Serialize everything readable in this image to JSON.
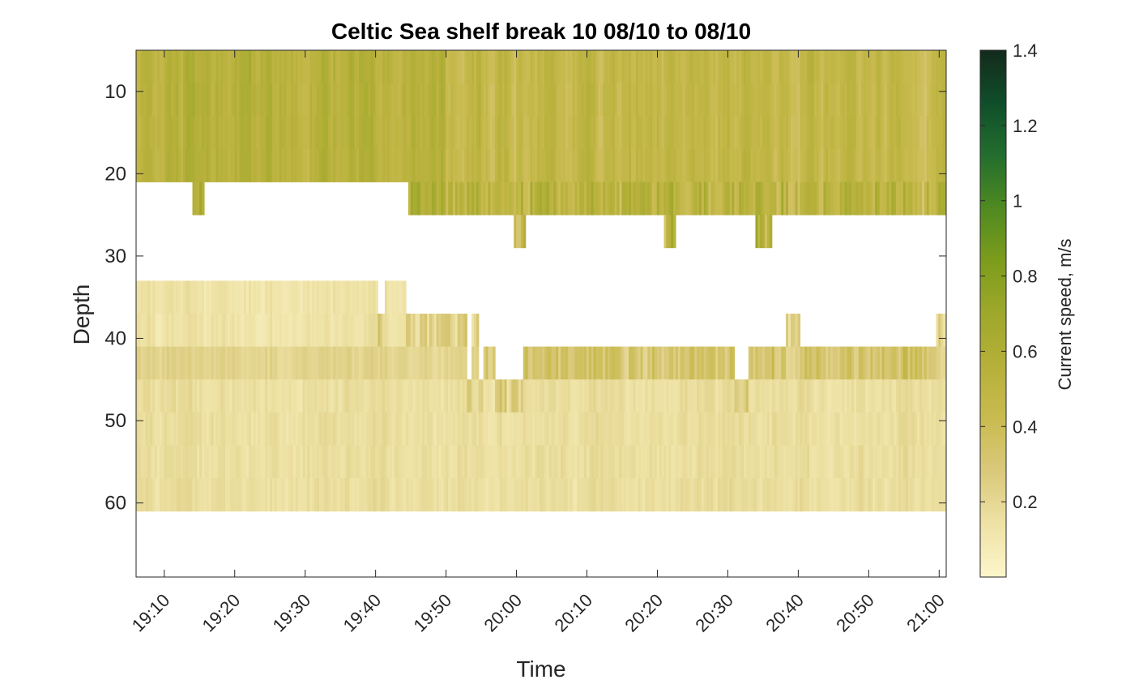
{
  "chart_data": {
    "type": "heatmap",
    "title": "Celtic Sea shelf break 10 08/10 to 08/10",
    "xlabel": "Time",
    "ylabel": "Depth",
    "colorbar_label": "Current speed, m/s",
    "x_range_minutes": [
      1146,
      1261
    ],
    "x_ticks": [
      "19:10",
      "19:20",
      "19:30",
      "19:40",
      "19:50",
      "20:00",
      "20:10",
      "20:20",
      "20:30",
      "20:40",
      "20:50",
      "21:00"
    ],
    "x_tick_minutes": [
      1150,
      1160,
      1170,
      1180,
      1190,
      1200,
      1210,
      1220,
      1230,
      1240,
      1250,
      1260
    ],
    "ylim": [
      5,
      69
    ],
    "y_reversed": true,
    "y_ticks": [
      10,
      20,
      30,
      40,
      50,
      60
    ],
    "colorbar_range": [
      0,
      1.4
    ],
    "colorbar_ticks": [
      "0.2",
      "0.4",
      "0.6",
      "0.8",
      "1",
      "1.2",
      "1.4"
    ],
    "colorbar_tick_values": [
      0.2,
      0.4,
      0.6,
      0.8,
      1.0,
      1.2,
      1.4
    ],
    "colormap": [
      "#fdf6cb",
      "#eee2a5",
      "#dac97b",
      "#c9bb50",
      "#b6b03a",
      "#9ea82a",
      "#7d9c1c",
      "#4f8a21",
      "#236e2e",
      "#0f4e2a",
      "#132a1c"
    ],
    "depth_bins": [
      5,
      9,
      13,
      17,
      21,
      25,
      29,
      33,
      37,
      41,
      45,
      49,
      53,
      57,
      61
    ],
    "layers": [
      {
        "depth_range": [
          5,
          21
        ],
        "speed": 0.52
      },
      {
        "depth_range": [
          21,
          25
        ],
        "speed": 0.55
      },
      {
        "depth_range": [
          25,
          29
        ],
        "speed": 0.5
      },
      {
        "depth_range": [
          33,
          41
        ],
        "speed": 0.13
      },
      {
        "depth_range": [
          41,
          45
        ],
        "speed": 0.22
      },
      {
        "depth_range": [
          45,
          61
        ],
        "speed": 0.16
      }
    ],
    "data_bottom_boundary": [
      {
        "from": 1146,
        "to": 1154,
        "depth": 21
      },
      {
        "from": 1154,
        "to": 1155.7,
        "depth": 25
      },
      {
        "from": 1155.7,
        "to": 1184.7,
        "depth": 21
      },
      {
        "from": 1184.7,
        "to": 1199.7,
        "depth": 25
      },
      {
        "from": 1199.7,
        "to": 1201.3,
        "depth": 29
      },
      {
        "from": 1201.3,
        "to": 1221,
        "depth": 25
      },
      {
        "from": 1221,
        "to": 1222.7,
        "depth": 29
      },
      {
        "from": 1222.7,
        "to": 1234,
        "depth": 25
      },
      {
        "from": 1234,
        "to": 1236.3,
        "depth": 29
      },
      {
        "from": 1236.3,
        "to": 1261,
        "depth": 25
      }
    ],
    "lower_data_top_boundary": [
      {
        "from": 1146,
        "to": 1180.3,
        "depth": 33
      },
      {
        "from": 1180.3,
        "to": 1181.3,
        "depth": 37
      },
      {
        "from": 1181.3,
        "to": 1184.3,
        "depth": 33
      },
      {
        "from": 1184.3,
        "to": 1193,
        "depth": 37
      },
      {
        "from": 1193,
        "to": 1193.7,
        "depth": 45
      },
      {
        "from": 1193.7,
        "to": 1194.7,
        "depth": 37
      },
      {
        "from": 1194.7,
        "to": 1195.3,
        "depth": 45
      },
      {
        "from": 1195.3,
        "to": 1197,
        "depth": 41
      },
      {
        "from": 1197,
        "to": 1201,
        "depth": 45
      },
      {
        "from": 1201,
        "to": 1231,
        "depth": 41
      },
      {
        "from": 1231,
        "to": 1233,
        "depth": 45
      },
      {
        "from": 1233,
        "to": 1238.3,
        "depth": 41
      },
      {
        "from": 1238.3,
        "to": 1240.3,
        "depth": 37
      },
      {
        "from": 1240.3,
        "to": 1259.7,
        "depth": 41
      },
      {
        "from": 1259.7,
        "to": 1261,
        "depth": 37
      }
    ],
    "data_floor_depth": 61
  }
}
